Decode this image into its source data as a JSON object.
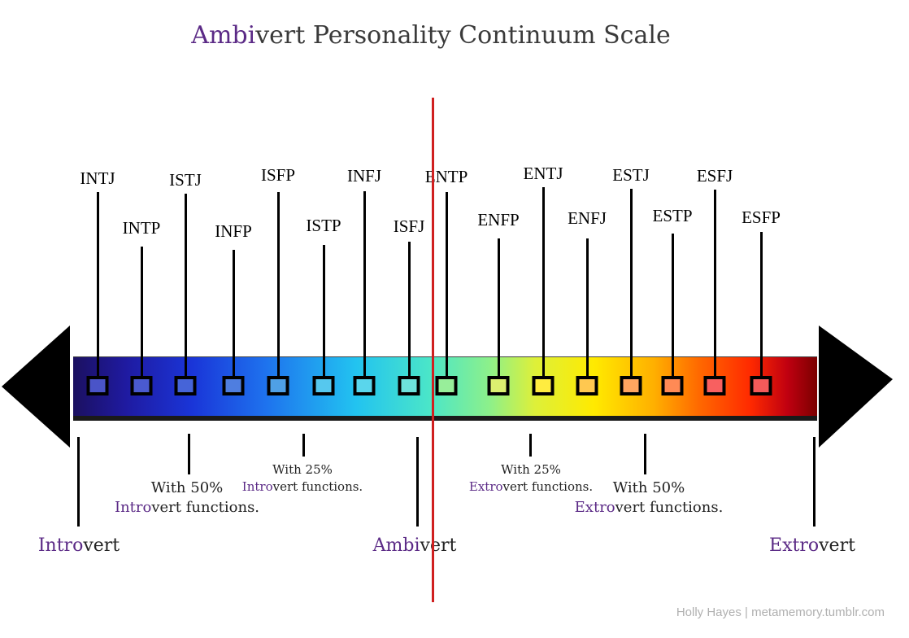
{
  "title": {
    "accent": "Ambi",
    "rest": "vert Personality Continuum Scale"
  },
  "types": [
    {
      "label": "INTJ",
      "color": "#4a54c8"
    },
    {
      "label": "INTP",
      "color": "#4a5ad0"
    },
    {
      "label": "ISTJ",
      "color": "#4664d8"
    },
    {
      "label": "INFP",
      "color": "#4f7ee0"
    },
    {
      "label": "ISFP",
      "color": "#4fa0e6"
    },
    {
      "label": "ISTP",
      "color": "#56c8ee"
    },
    {
      "label": "INFJ",
      "color": "#5ad6ec"
    },
    {
      "label": "ISFJ",
      "color": "#6ee2dc"
    },
    {
      "label": "ENTP",
      "color": "#98ee9a"
    },
    {
      "label": "ENFP",
      "color": "#dcf070"
    },
    {
      "label": "ENTJ",
      "color": "#ffec40"
    },
    {
      "label": "ENFJ",
      "color": "#ffc850"
    },
    {
      "label": "ESTJ",
      "color": "#ffa560"
    },
    {
      "label": "ESTP",
      "color": "#ff8a55"
    },
    {
      "label": "ESFJ",
      "color": "#f86060"
    },
    {
      "label": "ESFP",
      "color": "#f45a5a"
    }
  ],
  "notes": {
    "intro50": {
      "line1": "With 50%",
      "hl": "Intro",
      "rest": "vert functions."
    },
    "intro25": {
      "line1": "With 25%",
      "hl": "Intro",
      "rest": "vert functions."
    },
    "extro25": {
      "line1": "With 25%",
      "hl": "Extro",
      "rest": "vert functions."
    },
    "extro50": {
      "line1": "With 50%",
      "hl": "Extro",
      "rest": "vert functions."
    }
  },
  "ends": {
    "introvert": {
      "hl": "Intro",
      "rest": "vert"
    },
    "ambivert": {
      "hl": "Ambi",
      "rest": "vert"
    },
    "extrovert": {
      "hl": "Extro",
      "rest": "vert"
    }
  },
  "credit": "Holly Hayes | metamemory.tumblr.com"
}
